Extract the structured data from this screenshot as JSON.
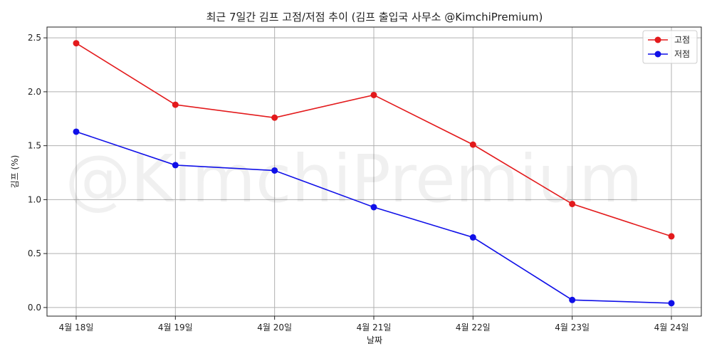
{
  "chart_data": {
    "type": "line",
    "title": "최근 7일간 김프 고점/저점 추이 (김프 출입국 사무소 @KimchiPremium)",
    "xlabel": "날짜",
    "ylabel": "김프 (%)",
    "watermark": "@KimchiPremium",
    "categories": [
      "4월 18일",
      "4월 19일",
      "4월 20일",
      "4월 21일",
      "4월 22일",
      "4월 23일",
      "4월 24일"
    ],
    "yticks": [
      "0.0",
      "0.5",
      "1.0",
      "1.5",
      "2.0",
      "2.5"
    ],
    "ylim": [
      -0.08,
      2.6
    ],
    "grid": true,
    "legend_position": "top-right",
    "series": [
      {
        "name": "고점",
        "color": "#e31a1c",
        "values": [
          2.45,
          1.88,
          1.76,
          1.97,
          1.51,
          0.96,
          0.66
        ]
      },
      {
        "name": "저점",
        "color": "#1010e8",
        "values": [
          1.63,
          1.32,
          1.27,
          0.93,
          0.65,
          0.07,
          0.04
        ]
      }
    ]
  }
}
